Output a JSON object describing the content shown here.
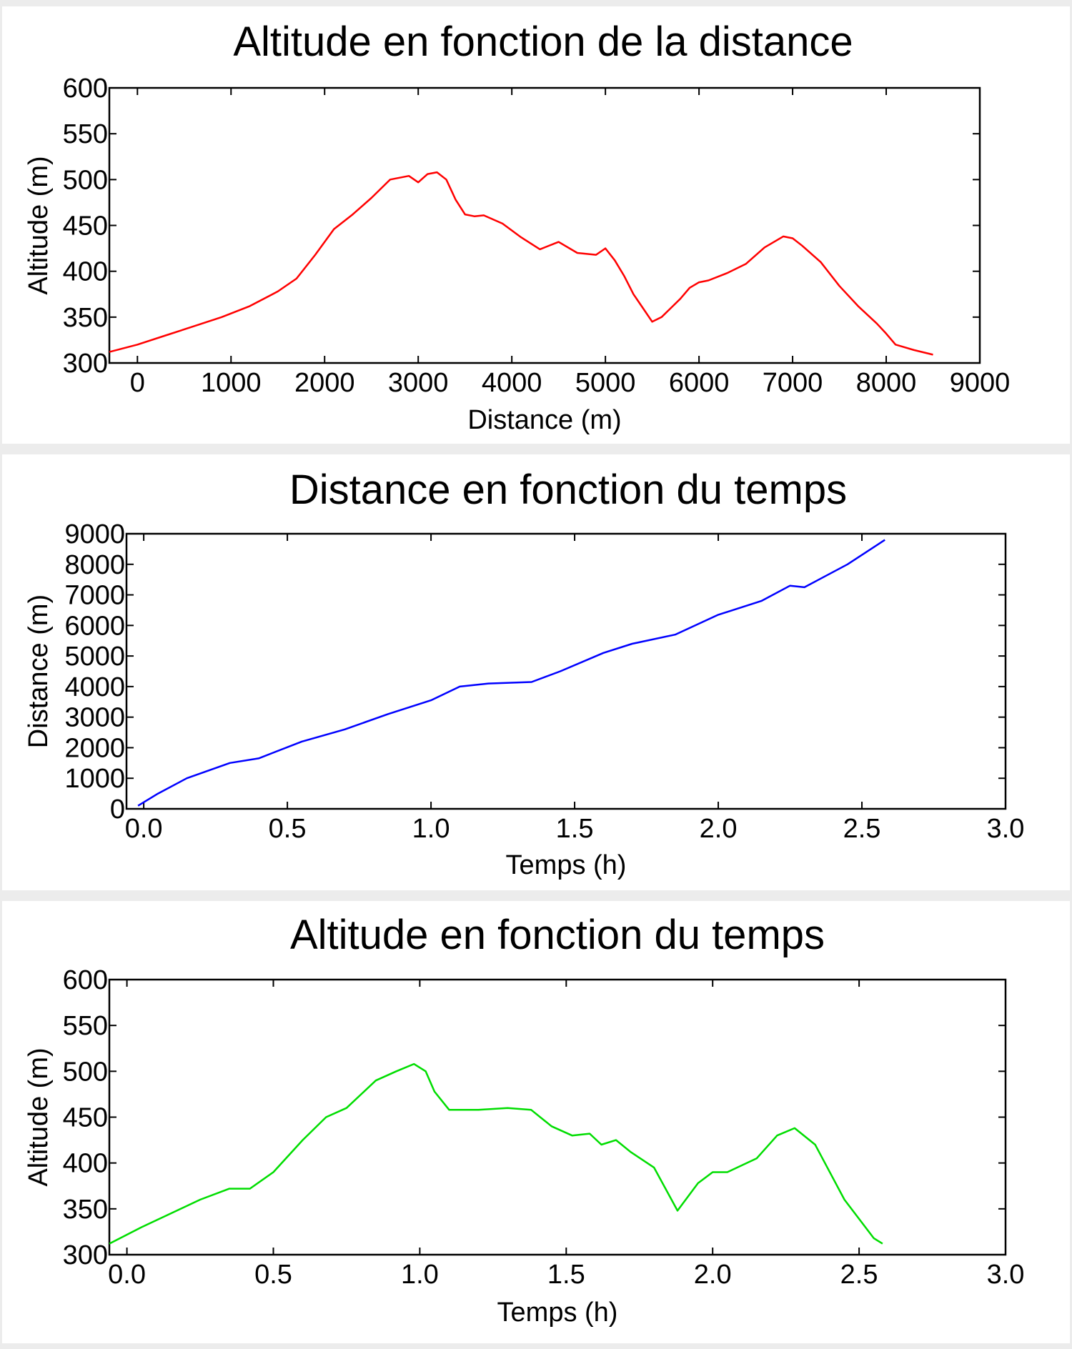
{
  "chart_data": [
    {
      "type": "line",
      "title": "Altitude en fonction de la distance",
      "xlabel": "Distance (m)",
      "ylabel": "Altitude (m)",
      "xlim": [
        -300,
        9000
      ],
      "ylim": [
        300,
        600
      ],
      "xticks": [
        0,
        1000,
        2000,
        3000,
        4000,
        5000,
        6000,
        7000,
        8000,
        9000
      ],
      "yticks": [
        300,
        350,
        400,
        450,
        500,
        550,
        600
      ],
      "grid": false,
      "series": [
        {
          "color": "#ff0000",
          "x": [
            -300,
            0,
            300,
            600,
            900,
            1200,
            1500,
            1700,
            1900,
            2100,
            2300,
            2500,
            2700,
            2900,
            3000,
            3100,
            3200,
            3300,
            3400,
            3500,
            3600,
            3700,
            3900,
            4100,
            4300,
            4500,
            4700,
            4900,
            5000,
            5100,
            5200,
            5300,
            5400,
            5500,
            5600,
            5700,
            5800,
            5900,
            6000,
            6100,
            6300,
            6500,
            6700,
            6900,
            7000,
            7100,
            7300,
            7500,
            7700,
            7900,
            8000,
            8100,
            8300,
            8500
          ],
          "y": [
            312,
            320,
            330,
            340,
            350,
            362,
            378,
            392,
            418,
            446,
            462,
            480,
            500,
            504,
            497,
            506,
            508,
            500,
            478,
            462,
            460,
            461,
            452,
            437,
            424,
            432,
            420,
            418,
            425,
            412,
            395,
            375,
            360,
            345,
            350,
            360,
            370,
            382,
            388,
            390,
            398,
            408,
            426,
            438,
            436,
            428,
            410,
            384,
            362,
            343,
            332,
            320,
            314,
            309
          ]
        }
      ]
    },
    {
      "type": "line",
      "title": "Distance en fonction du temps",
      "xlabel": "Temps (h)",
      "ylabel": "Distance (m)",
      "xlim": [
        -0.06,
        3.0
      ],
      "ylim": [
        0,
        9000
      ],
      "xticks": [
        "0.0",
        "0.5",
        "1.0",
        "1.5",
        "2.0",
        "2.5",
        "3.0"
      ],
      "yticks": [
        0,
        1000,
        2000,
        3000,
        4000,
        5000,
        6000,
        7000,
        8000,
        9000
      ],
      "grid": false,
      "series": [
        {
          "color": "#0000ff",
          "x": [
            -0.02,
            0.05,
            0.15,
            0.3,
            0.4,
            0.55,
            0.7,
            0.85,
            1.0,
            1.1,
            1.2,
            1.35,
            1.45,
            1.6,
            1.7,
            1.85,
            2.0,
            2.15,
            2.25,
            2.3,
            2.45,
            2.58
          ],
          "y": [
            100,
            500,
            1000,
            1500,
            1650,
            2200,
            2600,
            3100,
            3550,
            4000,
            4100,
            4150,
            4500,
            5100,
            5400,
            5700,
            6350,
            6800,
            7300,
            7250,
            8000,
            8800
          ]
        }
      ]
    },
    {
      "type": "line",
      "title": "Altitude en fonction du temps",
      "xlabel": "Temps (h)",
      "ylabel": "Altitude (m)",
      "xlim": [
        -0.06,
        3.0
      ],
      "ylim": [
        300,
        600
      ],
      "xticks": [
        "0.0",
        "0.5",
        "1.0",
        "1.5",
        "2.0",
        "2.5",
        "3.0"
      ],
      "yticks": [
        300,
        350,
        400,
        450,
        500,
        550,
        600
      ],
      "grid": false,
      "series": [
        {
          "color": "#00dd00",
          "x": [
            -0.06,
            0.05,
            0.15,
            0.25,
            0.35,
            0.42,
            0.5,
            0.6,
            0.68,
            0.75,
            0.85,
            0.92,
            0.98,
            1.02,
            1.05,
            1.1,
            1.2,
            1.3,
            1.38,
            1.45,
            1.52,
            1.58,
            1.62,
            1.67,
            1.72,
            1.8,
            1.88,
            1.95,
            2.0,
            2.05,
            2.15,
            2.22,
            2.28,
            2.35,
            2.45,
            2.55,
            2.58
          ],
          "y": [
            312,
            330,
            345,
            360,
            372,
            372,
            390,
            425,
            450,
            460,
            490,
            500,
            508,
            500,
            478,
            458,
            458,
            460,
            458,
            440,
            430,
            432,
            420,
            425,
            412,
            395,
            348,
            378,
            390,
            390,
            405,
            430,
            438,
            420,
            360,
            318,
            312
          ]
        }
      ]
    }
  ]
}
